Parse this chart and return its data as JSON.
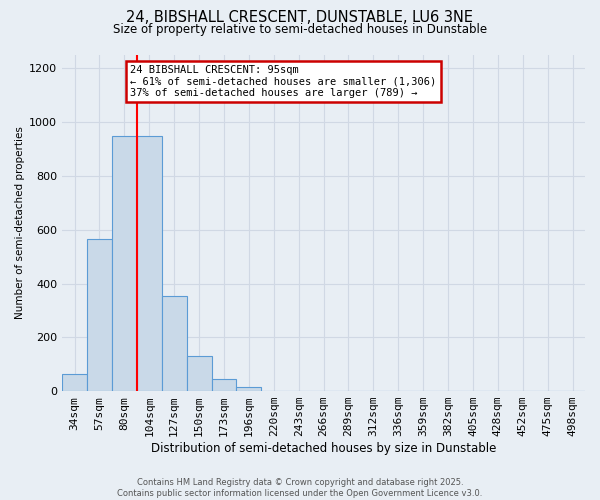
{
  "title_line1": "24, BIBSHALL CRESCENT, DUNSTABLE, LU6 3NE",
  "title_line2": "Size of property relative to semi-detached houses in Dunstable",
  "categories": [
    "34sqm",
    "57sqm",
    "80sqm",
    "104sqm",
    "127sqm",
    "150sqm",
    "173sqm",
    "196sqm",
    "220sqm",
    "243sqm",
    "266sqm",
    "289sqm",
    "312sqm",
    "336sqm",
    "359sqm",
    "382sqm",
    "405sqm",
    "428sqm",
    "452sqm",
    "475sqm",
    "498sqm"
  ],
  "values": [
    65,
    565,
    950,
    950,
    355,
    130,
    45,
    15,
    0,
    0,
    0,
    0,
    0,
    0,
    0,
    0,
    0,
    0,
    0,
    0,
    0
  ],
  "bar_color": "#c9d9e8",
  "bar_edge_color": "#5b9bd5",
  "grid_color": "#d0d8e4",
  "background_color": "#e8eef4",
  "annotation_line1": "24 BIBSHALL CRESCENT: 95sqm",
  "annotation_line2": "← 61% of semi-detached houses are smaller (1,306)",
  "annotation_line3": "37% of semi-detached houses are larger (789) →",
  "annotation_box_color": "#ffffff",
  "annotation_border_color": "#cc0000",
  "xlabel": "Distribution of semi-detached houses by size in Dunstable",
  "ylabel": "Number of semi-detached properties",
  "ylim": [
    0,
    1250
  ],
  "yticks": [
    0,
    200,
    400,
    600,
    800,
    1000,
    1200
  ],
  "footer_line1": "Contains HM Land Registry data © Crown copyright and database right 2025.",
  "footer_line2": "Contains public sector information licensed under the Open Government Licence v3.0.",
  "red_line_x": 2.5
}
